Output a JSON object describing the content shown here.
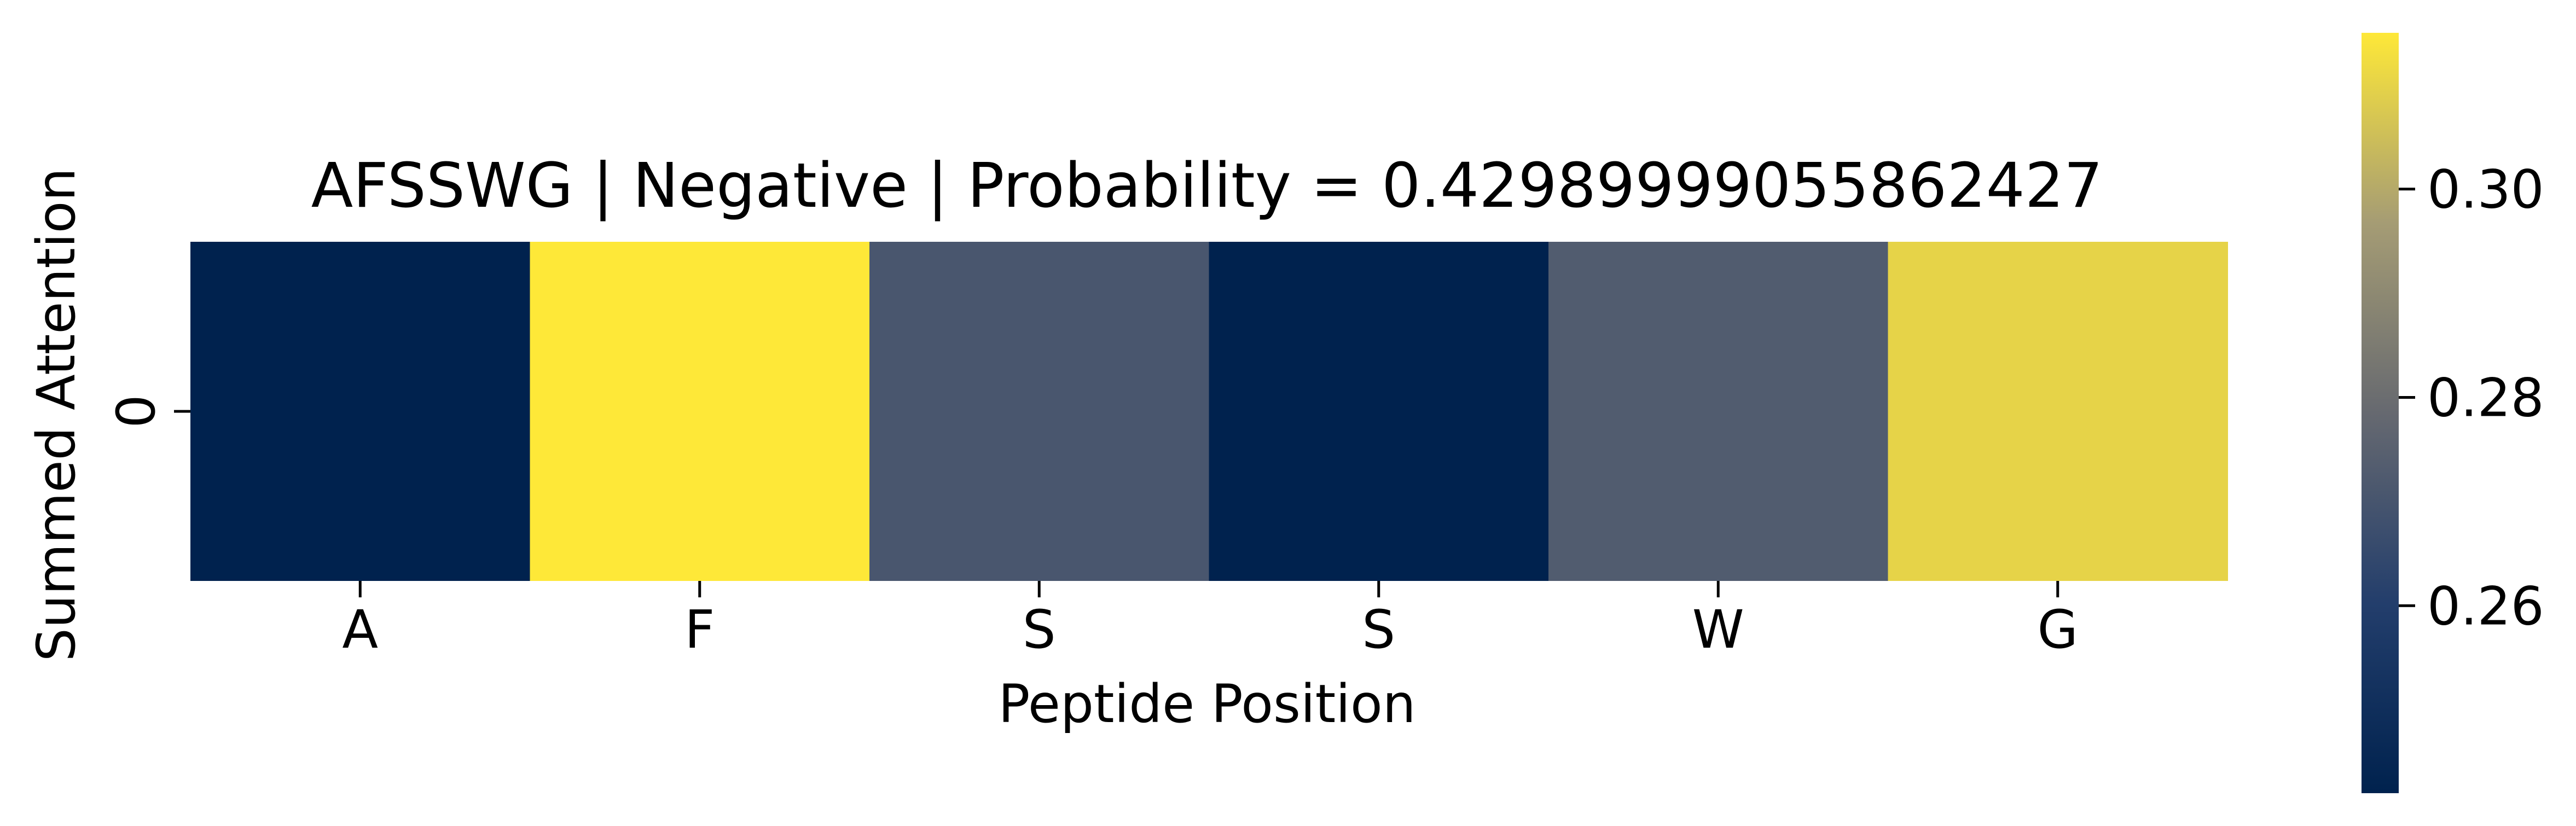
{
  "chart_data": {
    "type": "heatmap",
    "title": "AFSSWG | Negative | Probability = 0.42989999055862427",
    "xlabel": "Peptide Position",
    "ylabel": "Summed Attention",
    "x_categories": [
      "A",
      "F",
      "S",
      "S",
      "W",
      "G"
    ],
    "y_categories": [
      "0"
    ],
    "values": [
      [
        0.242,
        0.315,
        0.2705,
        0.242,
        0.2728,
        0.31
      ]
    ],
    "colormap": "cividis",
    "colorbar": {
      "vmin": 0.242,
      "vmax": 0.315,
      "ticks": [
        0.26,
        0.28,
        0.3
      ],
      "tick_labels": [
        "0.26",
        "0.28",
        "0.30"
      ]
    },
    "grid": false,
    "legend": "none"
  }
}
